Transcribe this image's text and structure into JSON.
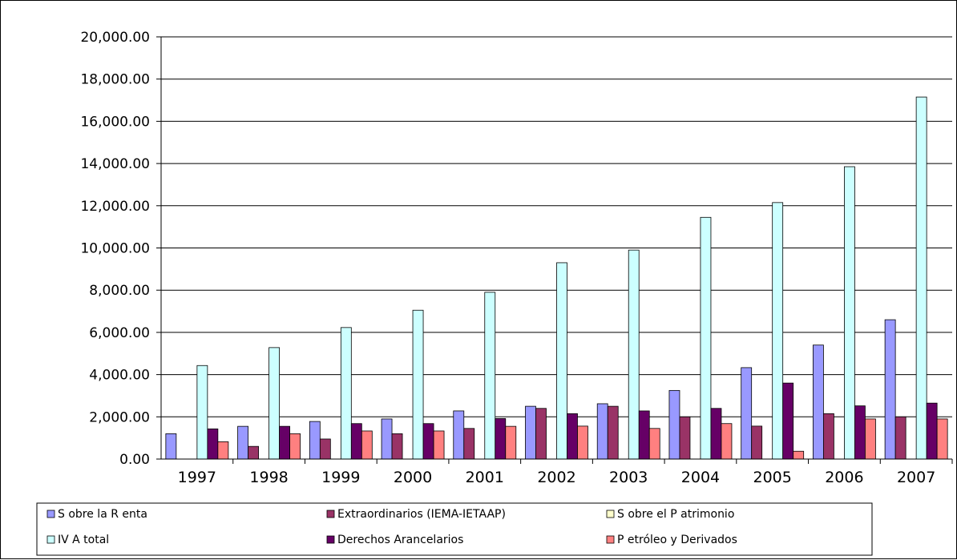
{
  "chart_data": {
    "type": "bar",
    "title": "",
    "xlabel": "",
    "ylabel": "",
    "ylim": [
      0,
      20000
    ],
    "yticks": [
      "0.00",
      "2,000.00",
      "4,000.00",
      "6,000.00",
      "8,000.00",
      "10,000.00",
      "12,000.00",
      "14,000.00",
      "16,000.00",
      "18,000.00",
      "20,000.00"
    ],
    "grid": "horizontal",
    "legend_position": "bottom",
    "categories": [
      "1997",
      "1998",
      "1999",
      "2000",
      "2001",
      "2002",
      "2003",
      "2004",
      "2005",
      "2006",
      "2007"
    ],
    "series": [
      {
        "name": "S obre la R enta",
        "color": "#9999ff",
        "values": [
          1200,
          1550,
          1780,
          1900,
          2280,
          2500,
          2620,
          3250,
          4330,
          5400,
          6600
        ]
      },
      {
        "name": "Extraordinarios (IEMA-IETAAP)",
        "color": "#993366",
        "values": [
          0,
          600,
          950,
          1200,
          1450,
          2400,
          2500,
          2000,
          1560,
          2150,
          2000
        ]
      },
      {
        "name": "S obre el P atrimonio",
        "color": "#ffffcc",
        "values": [
          0,
          0,
          0,
          0,
          0,
          0,
          0,
          0,
          0,
          0,
          0
        ]
      },
      {
        "name": "IV A total",
        "color": "#ccffff",
        "values": [
          4430,
          5280,
          6230,
          7050,
          7900,
          9300,
          9900,
          11450,
          12150,
          13850,
          17150
        ]
      },
      {
        "name": "Derechos Arancelarios",
        "color": "#660066",
        "values": [
          1430,
          1550,
          1680,
          1680,
          1920,
          2150,
          2280,
          2400,
          3600,
          2520,
          2650
        ]
      },
      {
        "name": "P etróleo y Derivados",
        "color": "#ff8080",
        "values": [
          820,
          1200,
          1330,
          1330,
          1550,
          1560,
          1450,
          1680,
          370,
          1900,
          1900
        ]
      }
    ]
  }
}
